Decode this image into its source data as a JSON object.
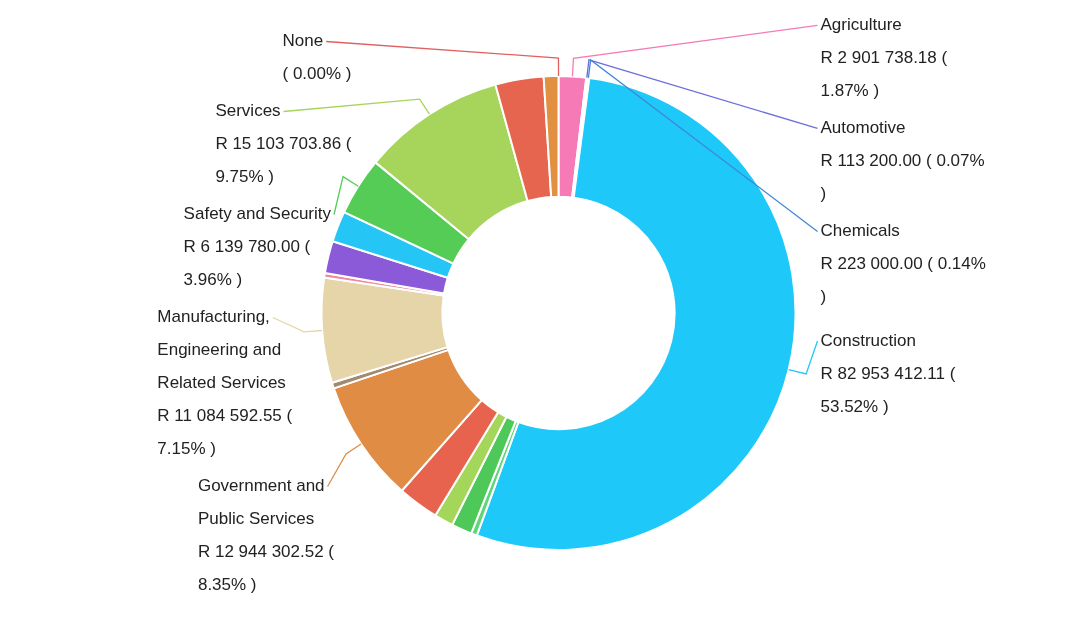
{
  "chart_data": {
    "type": "donut",
    "categories": [
      "Agriculture",
      "Automotive",
      "Chemicals",
      "Construction",
      null,
      null,
      null,
      null,
      "Government and Public Services",
      null,
      "Manufacturing, Engineering and Related Services",
      null,
      null,
      null,
      "Safety and Security",
      "Services",
      null,
      null,
      "None"
    ],
    "values": [
      1.87,
      0.07,
      0.14,
      53.52,
      0.4,
      1.4,
      1.3,
      2.8,
      8.35,
      0.4,
      7.15,
      0.3,
      2.2,
      2.1,
      3.96,
      9.75,
      3.29,
      1.0,
      0
    ],
    "colors": [
      "#f57ab5",
      "#6a6ee0",
      "#3f87d6",
      "#1ec8f8",
      "#5fd67a",
      "#4fc85a",
      "#a4d65a",
      "#e8634e",
      "#e08c45",
      "#a08a70",
      "#e6d5a8",
      "#f08aa0",
      "#8a5ad8",
      "#25c6f5",
      "#55cc55",
      "#a7d45a",
      "#e5654f",
      "#e09040",
      "#e06060"
    ],
    "value_labels": [
      "R 2 901 738.18 ( 1.87% )",
      "R 113 200.00 ( 0.07% )",
      "R 223 000.00 ( 0.14% )",
      "R 82 953 412.11 ( 53.52% )",
      null,
      null,
      null,
      null,
      "R 12 944 302.52 ( 8.35% )",
      null,
      "R 11 084 592.55 ( 7.15% )",
      null,
      null,
      null,
      "R 6 139 780.00 ( 3.96% )",
      "R 15 103 703.86 ( 9.75% )",
      null,
      null,
      "( 0.00% )"
    ]
  }
}
